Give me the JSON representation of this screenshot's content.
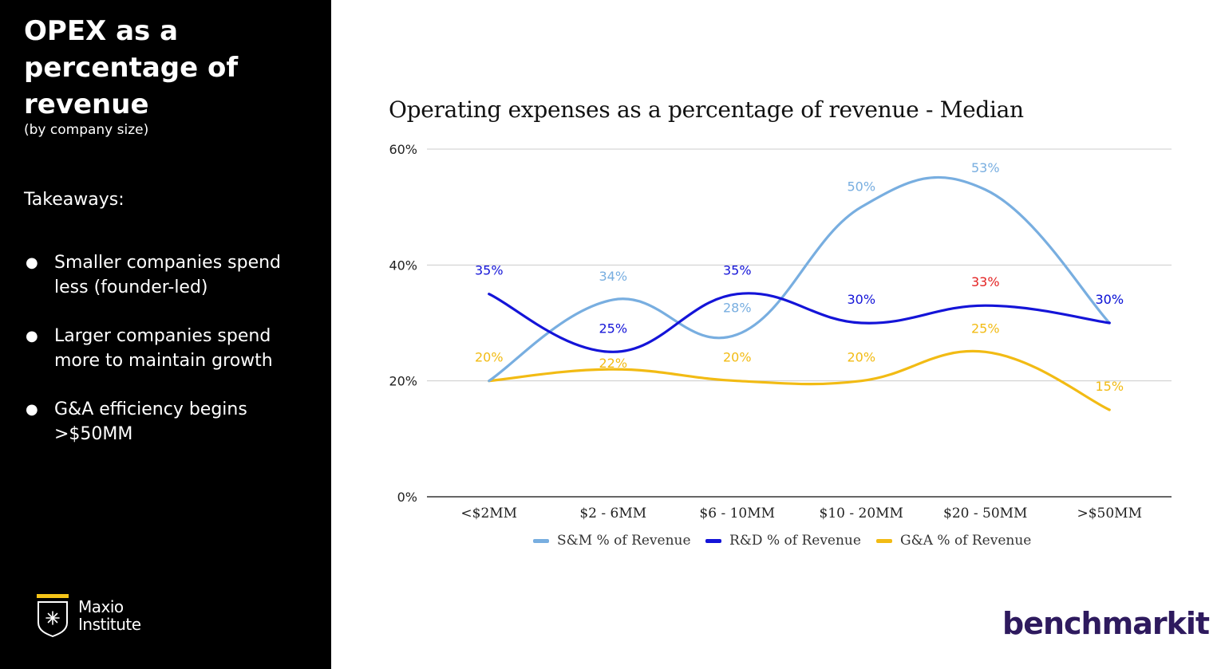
{
  "slide": {
    "title": "OPEX as a percentage of revenue",
    "subtitle": "(by company size)",
    "takeaways_heading": "Takeaways:",
    "takeaways": [
      "Smaller companies spend less (founder-led)",
      "Larger companies spend more to maintain growth",
      "G&A efficiency begins >$50MM"
    ],
    "bullet_glyph": "●"
  },
  "brand": {
    "name_line1": "Maxio",
    "name_line2": "Institute",
    "logo_icon": "shield-icon",
    "accent_color": "#f5c518"
  },
  "partner_logo": {
    "text": "benchmarkit"
  },
  "chart_data": {
    "type": "line",
    "title": "Operating expenses as a percentage of revenue - Median",
    "xlabel": "",
    "ylabel": "",
    "categories": [
      "<$2MM",
      "$2 - 6MM",
      "$6 - 10MM",
      "$10 - 20MM",
      "$20 - 50MM",
      ">$50MM"
    ],
    "ylim": [
      0,
      60
    ],
    "yticks": [
      0,
      20,
      40,
      60
    ],
    "ytick_labels": [
      "0%",
      "20%",
      "40%",
      "60%"
    ],
    "grid": true,
    "legend_position": "bottom",
    "series": [
      {
        "name": "S&M % of Revenue",
        "color": "#78aee0",
        "values": [
          20,
          34,
          28,
          50,
          53,
          30
        ],
        "labels": [
          "",
          "34%",
          "28%",
          "50%",
          "53%",
          "30%"
        ]
      },
      {
        "name": "R&D % of Revenue",
        "color": "#1414d8",
        "values": [
          35,
          25,
          35,
          30,
          33,
          30
        ],
        "labels": [
          "35%",
          "25%",
          "35%",
          "30%",
          "33%",
          "30%"
        ]
      },
      {
        "name": "G&A % of Revenue",
        "color": "#f2bb14",
        "values": [
          20,
          22,
          20,
          20,
          25,
          15
        ],
        "labels": [
          "20%",
          "22%",
          "20%",
          "20%",
          "25%",
          "15%"
        ]
      }
    ],
    "highlight": {
      "series": 1,
      "index": 4,
      "color": "#e32222"
    }
  }
}
